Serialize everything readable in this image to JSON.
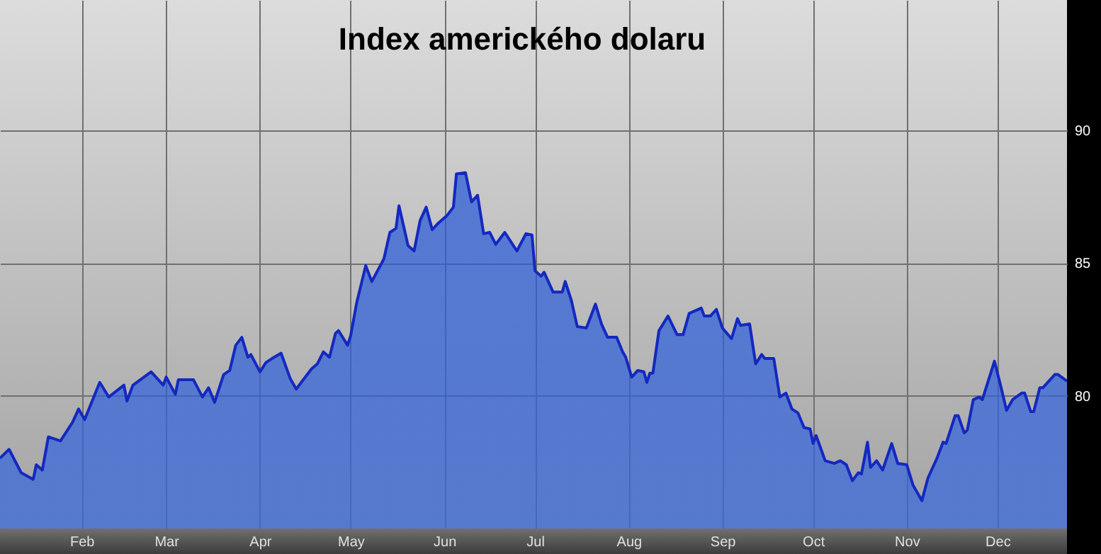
{
  "chart_data": {
    "type": "area",
    "title": "Index amerického dolaru",
    "x": [
      "--01-05",
      "--01-08",
      "--01-12",
      "--01-16",
      "--01-17",
      "--01-19",
      "--01-21",
      "--01-25",
      "--01-29",
      "--01-31",
      "--02-02",
      "--02-07",
      "--02-10",
      "--02-15",
      "--02-16",
      "--02-18",
      "--02-24",
      "--02-28",
      "--03-01",
      "--03-04",
      "--03-05",
      "--03-10",
      "--03-13",
      "--03-15",
      "--03-17",
      "--03-20",
      "--03-22",
      "--03-24",
      "--03-26",
      "--03-28",
      "--03-29",
      "--04-01",
      "--04-03",
      "--04-05",
      "--04-08",
      "--04-11",
      "--04-13",
      "--04-18",
      "--04-20",
      "--04-22",
      "--04-24",
      "--04-26",
      "--04-27",
      "--04-30",
      "--05-01",
      "--05-03",
      "--05-06",
      "--05-08",
      "--05-12",
      "--05-14",
      "--05-16",
      "--05-17",
      "--05-20",
      "--05-22",
      "--05-24",
      "--05-26",
      "--05-28",
      "--05-30",
      "--06-02",
      "--06-04",
      "--06-05",
      "--06-08",
      "--06-10",
      "--06-12",
      "--06-14",
      "--06-16",
      "--06-18",
      "--06-21",
      "--06-23",
      "--06-25",
      "--06-28",
      "--06-30",
      "--07-01",
      "--07-03",
      "--07-04",
      "--07-07",
      "--07-10",
      "--07-11",
      "--07-13",
      "--07-15",
      "--07-18",
      "--07-21",
      "--07-23",
      "--07-25",
      "--07-28",
      "--07-30",
      "--07-31",
      "--08-02",
      "--08-04",
      "--08-06",
      "--08-07",
      "--08-08",
      "--08-09",
      "--08-11",
      "--08-14",
      "--08-17",
      "--08-19",
      "--08-21",
      "--08-25",
      "--08-26",
      "--08-28",
      "--08-30",
      "--09-01",
      "--09-04",
      "--09-06",
      "--09-07",
      "--09-10",
      "--09-12",
      "--09-14",
      "--09-15",
      "--09-18",
      "--09-20",
      "--09-22",
      "--09-24",
      "--09-26",
      "--09-28",
      "--09-30",
      "--10-01",
      "--10-02",
      "--10-05",
      "--10-08",
      "--10-10",
      "--10-12",
      "--10-14",
      "--10-16",
      "--10-17",
      "--10-19",
      "--10-20",
      "--10-22",
      "--10-24",
      "--10-27",
      "--10-29",
      "--11-01",
      "--11-03",
      "--11-06",
      "--11-08",
      "--11-11",
      "--11-13",
      "--11-14",
      "--11-17",
      "--11-18",
      "--11-20",
      "--11-21",
      "--11-23",
      "--11-25",
      "--11-26",
      "--11-30",
      "--12-02",
      "--12-04",
      "--12-06",
      "--12-09",
      "--12-10",
      "--12-12",
      "--12-13",
      "--12-15",
      "--12-16",
      "--12-20",
      "--12-21",
      "--12-24"
    ],
    "series": [
      {
        "color": "#1428c0",
        "values": [
          77.65,
          77.98,
          77.1,
          76.85,
          77.4,
          77.2,
          78.45,
          78.3,
          79.0,
          79.5,
          79.1,
          80.5,
          79.95,
          80.4,
          79.8,
          80.4,
          80.9,
          80.4,
          80.7,
          80.05,
          80.6,
          80.6,
          79.95,
          80.3,
          79.75,
          80.8,
          80.95,
          81.9,
          82.2,
          81.45,
          81.55,
          80.9,
          81.25,
          81.4,
          81.6,
          80.65,
          80.25,
          81.0,
          81.2,
          81.65,
          81.45,
          82.35,
          82.45,
          81.9,
          82.25,
          83.5,
          84.9,
          84.3,
          85.15,
          86.15,
          86.3,
          87.15,
          85.65,
          85.45,
          86.6,
          87.1,
          86.25,
          86.5,
          86.8,
          87.1,
          88.35,
          88.4,
          87.3,
          87.55,
          86.1,
          86.15,
          85.7,
          86.15,
          85.8,
          85.45,
          86.1,
          86.05,
          84.7,
          84.5,
          84.65,
          83.9,
          83.9,
          84.3,
          83.6,
          82.6,
          82.55,
          83.45,
          82.7,
          82.2,
          82.2,
          81.65,
          81.45,
          80.7,
          80.95,
          80.9,
          80.5,
          80.85,
          80.85,
          82.45,
          83.0,
          82.3,
          82.3,
          83.1,
          83.3,
          83.0,
          83.0,
          83.25,
          82.55,
          82.15,
          82.9,
          82.65,
          82.7,
          81.2,
          81.55,
          81.4,
          81.4,
          79.95,
          80.1,
          79.5,
          79.35,
          78.8,
          78.75,
          78.2,
          78.5,
          77.55,
          77.45,
          77.55,
          77.4,
          76.8,
          77.1,
          77.05,
          78.25,
          77.3,
          77.55,
          77.2,
          78.2,
          77.45,
          77.4,
          76.65,
          76.05,
          76.9,
          77.65,
          78.25,
          78.2,
          79.25,
          79.25,
          78.6,
          78.7,
          79.85,
          79.95,
          79.85,
          81.3,
          80.4,
          79.45,
          79.85,
          80.1,
          80.1,
          79.4,
          79.4,
          80.3,
          80.3,
          80.8,
          80.8,
          80.55
        ]
      }
    ],
    "xlim": [
      "--01-05",
      "--12-24"
    ],
    "ylim": [
      75,
      94.9
    ],
    "xticks": [
      {
        "value": "--02-01",
        "label": "Feb"
      },
      {
        "value": "--03-01",
        "label": "Mar"
      },
      {
        "value": "--04-01",
        "label": "Apr"
      },
      {
        "value": "--05-01",
        "label": "May"
      },
      {
        "value": "--06-01",
        "label": "Jun"
      },
      {
        "value": "--07-01",
        "label": "Jul"
      },
      {
        "value": "--08-01",
        "label": "Aug"
      },
      {
        "value": "--09-01",
        "label": "Sep"
      },
      {
        "value": "--10-01",
        "label": "Oct"
      },
      {
        "value": "--11-01",
        "label": "Nov"
      },
      {
        "value": "--12-01",
        "label": "Dec"
      }
    ],
    "yticks": [
      80,
      85,
      90
    ],
    "grid": true
  }
}
